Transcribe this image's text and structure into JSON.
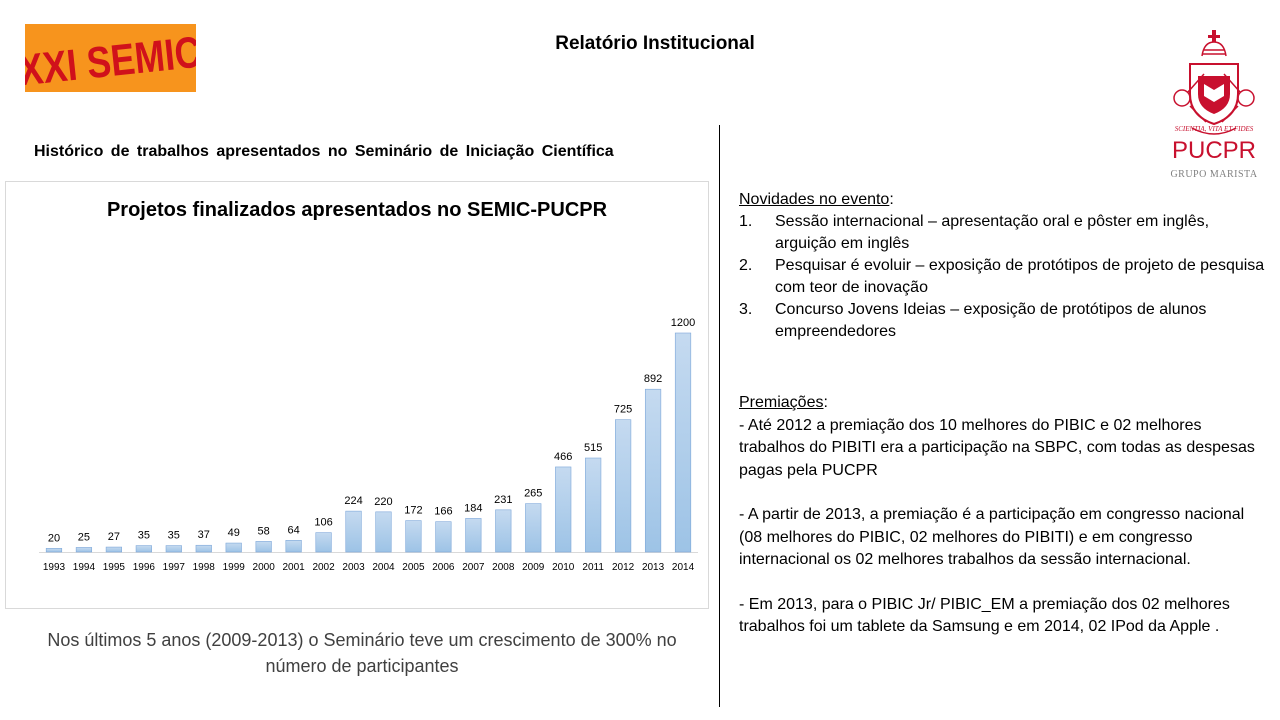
{
  "header": {
    "logo_text": "XXI SEMIC",
    "title": "Relatório Institucional",
    "pucpr_name": "PUCPR",
    "pucpr_group": "GRUPO MARISTA",
    "pucpr_motto": "SCIENTIA, VITA ET FIDES"
  },
  "subtitle": "Histórico de trabalhos apresentados no Seminário de Iniciação Científica",
  "chart_data": {
    "type": "bar",
    "title": "Projetos finalizados apresentados no SEMIC-PUCPR",
    "categories": [
      "1993",
      "1994",
      "1995",
      "1996",
      "1997",
      "1998",
      "1999",
      "2000",
      "2001",
      "2002",
      "2003",
      "2004",
      "2005",
      "2006",
      "2007",
      "2008",
      "2009",
      "2010",
      "2011",
      "2012",
      "2013",
      "2014"
    ],
    "values": [
      20,
      25,
      27,
      35,
      35,
      37,
      49,
      58,
      64,
      106,
      224,
      220,
      172,
      166,
      184,
      231,
      265,
      466,
      515,
      725,
      892,
      1200
    ],
    "xlabel": "",
    "ylabel": "",
    "ylim": [
      0,
      1200
    ],
    "grid": false,
    "legend": "none",
    "bar_color": "#9dc3e6",
    "data_labels": true
  },
  "footnote": "Nos últimos 5 anos (2009-2013) o Seminário teve um crescimento de 300% no número de participantes",
  "news": {
    "heading": "Novidades no evento",
    "heading_colon": ":",
    "items": [
      {
        "num": "1.",
        "text": "Sessão internacional – apresentação oral e pôster em inglês, arguição em inglês"
      },
      {
        "num": "2.",
        "text": "Pesquisar é evoluir – exposição de protótipos de projeto de pesquisa com teor de inovação"
      },
      {
        "num": "3.",
        "text": "Concurso Jovens Ideias – exposição de protótipos de alunos empreendedores"
      }
    ]
  },
  "prizes": {
    "heading": "Premiações",
    "heading_colon": ":",
    "paragraphs": [
      "- Até 2012 a premiação dos 10 melhores do PIBIC e 02 melhores trabalhos do PIBITI era a participação na SBPC, com todas as despesas pagas pela PUCPR",
      "- A partir de 2013, a premiação é a participação em congresso nacional (08 melhores do PIBIC, 02 melhores do PIBITI) e em congresso internacional os 02 melhores trabalhos da sessão internacional.",
      "- Em 2013, para o PIBIC Jr/ PIBIC_EM  a premiação dos 02 melhores trabalhos foi um tablete da Samsung e em 2014,  02 IPod da Apple ."
    ]
  },
  "colors": {
    "logo_bg": "#f7941d",
    "logo_text": "#d0111b",
    "pucpr_red": "#c8102e"
  }
}
